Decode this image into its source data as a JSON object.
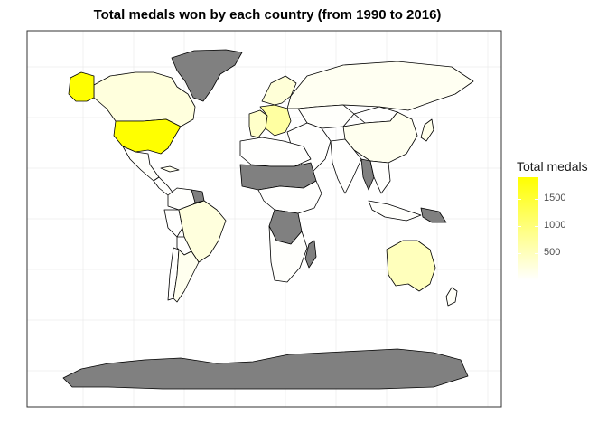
{
  "title": "Total medals won by each country (from 1990 to 2016)",
  "legend": {
    "title": "Total medals",
    "ticks": [
      {
        "label": "1500",
        "value": 1500
      },
      {
        "label": "1000",
        "value": 1000
      },
      {
        "label": "500",
        "value": 500
      }
    ],
    "min": 0,
    "max": 1900,
    "color_low": "#ffffff",
    "color_high": "#ffff00"
  },
  "colors": {
    "no_data": "#808080",
    "border": "#000000",
    "grid": "#ebebeb",
    "panel_border": "#333333"
  },
  "regions": [
    {
      "name": "United States",
      "value": 1900
    },
    {
      "name": "Alaska",
      "value": 1900
    },
    {
      "name": "Canada",
      "value": 250
    },
    {
      "name": "Greenland",
      "value": null
    },
    {
      "name": "Mexico",
      "value": 30
    },
    {
      "name": "Central America",
      "value": 5
    },
    {
      "name": "Cuba",
      "value": 120
    },
    {
      "name": "South America north",
      "value": 20
    },
    {
      "name": "Brazil",
      "value": 250
    },
    {
      "name": "Argentina",
      "value": 120
    },
    {
      "name": "Chile",
      "value": 10
    },
    {
      "name": "Peru",
      "value": 5
    },
    {
      "name": "Bolivia",
      "value": 0
    },
    {
      "name": "Guyana",
      "value": null
    },
    {
      "name": "Europe west",
      "value": 400
    },
    {
      "name": "Europe central",
      "value": 700
    },
    {
      "name": "Scandinavia",
      "value": 300
    },
    {
      "name": "Russia",
      "value": 100
    },
    {
      "name": "Kazakhstan",
      "value": 30
    },
    {
      "name": "China",
      "value": 120
    },
    {
      "name": "Mongolia",
      "value": 5
    },
    {
      "name": "Japan",
      "value": 150
    },
    {
      "name": "Middle East",
      "value": 10
    },
    {
      "name": "India",
      "value": 10
    },
    {
      "name": "Southeast Asia",
      "value": 5
    },
    {
      "name": "Myanmar",
      "value": null
    },
    {
      "name": "Indonesia",
      "value": 20
    },
    {
      "name": "Papua New Guinea",
      "value": null
    },
    {
      "name": "North Africa",
      "value": 10
    },
    {
      "name": "Sahel",
      "value": null
    },
    {
      "name": "Central Africa",
      "value": 5
    },
    {
      "name": "DR Congo",
      "value": null
    },
    {
      "name": "Southern Africa",
      "value": 20
    },
    {
      "name": "Madagascar",
      "value": null
    },
    {
      "name": "Australia",
      "value": 500
    },
    {
      "name": "New Zealand",
      "value": 50
    },
    {
      "name": "Antarctica",
      "value": null
    }
  ]
}
